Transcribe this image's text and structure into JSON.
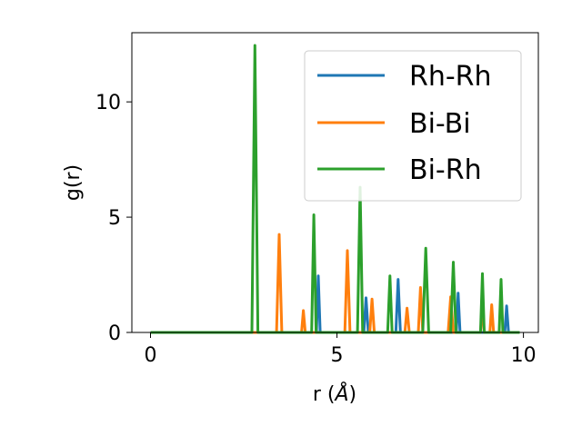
{
  "chart_data": {
    "type": "line",
    "title": "",
    "xlabel_main": "r (",
    "xlabel_italic": "Å",
    "xlabel_tail": ")",
    "ylabel": "g(r)",
    "xlim": [
      -0.5,
      10.4
    ],
    "ylim": [
      0,
      13
    ],
    "xticks": [
      {
        "value": 0,
        "label": "0"
      },
      {
        "value": 5,
        "label": "5"
      },
      {
        "value": 10,
        "label": "10"
      }
    ],
    "yticks": [
      {
        "value": 0,
        "label": "0"
      },
      {
        "value": 5,
        "label": "5"
      },
      {
        "value": 10,
        "label": "10"
      }
    ],
    "grid": false,
    "legend_position": "top-right",
    "series": [
      {
        "name": "Rh-Rh",
        "color": "#1f77b4",
        "x": [
          0,
          4.45,
          4.5,
          4.55,
          5.72,
          5.78,
          5.84,
          6.58,
          6.64,
          6.7,
          8.2,
          8.25,
          8.3,
          9.5,
          9.55,
          9.6,
          9.9
        ],
        "y": [
          0,
          0,
          2.45,
          0,
          0,
          1.5,
          0,
          0,
          2.3,
          0,
          0,
          1.7,
          0,
          0,
          1.15,
          0,
          0
        ]
      },
      {
        "name": "Bi-Bi",
        "color": "#ff7f0e",
        "x": [
          0,
          3.38,
          3.45,
          3.52,
          4.05,
          4.1,
          4.15,
          5.21,
          5.28,
          5.35,
          5.88,
          5.94,
          6.0,
          6.82,
          6.88,
          6.94,
          7.18,
          7.24,
          7.3,
          7.98,
          8.05,
          8.12,
          8.85,
          8.9,
          8.95,
          9.1,
          9.15,
          9.2,
          9.9
        ],
        "y": [
          0,
          0,
          4.25,
          0,
          0,
          0.95,
          0,
          0,
          3.55,
          0,
          0,
          1.45,
          0,
          0,
          1.05,
          0,
          0,
          1.95,
          0,
          0,
          1.55,
          0,
          0,
          1.2,
          0,
          0,
          1.2,
          0,
          0
        ]
      },
      {
        "name": "Bi-Rh",
        "color": "#2ca02c",
        "x": [
          0,
          2.72,
          2.8,
          2.88,
          4.32,
          4.38,
          4.44,
          5.55,
          5.62,
          5.69,
          6.36,
          6.42,
          6.48,
          7.3,
          7.38,
          7.46,
          8.05,
          8.12,
          8.19,
          8.85,
          8.9,
          8.95,
          9.35,
          9.4,
          9.45,
          9.9
        ],
        "y": [
          0,
          0,
          12.45,
          0,
          0,
          5.1,
          0,
          0,
          6.3,
          0,
          0,
          2.45,
          0,
          0,
          3.65,
          0,
          0,
          3.05,
          0,
          0,
          2.55,
          0,
          0,
          2.3,
          0,
          0
        ]
      }
    ]
  }
}
